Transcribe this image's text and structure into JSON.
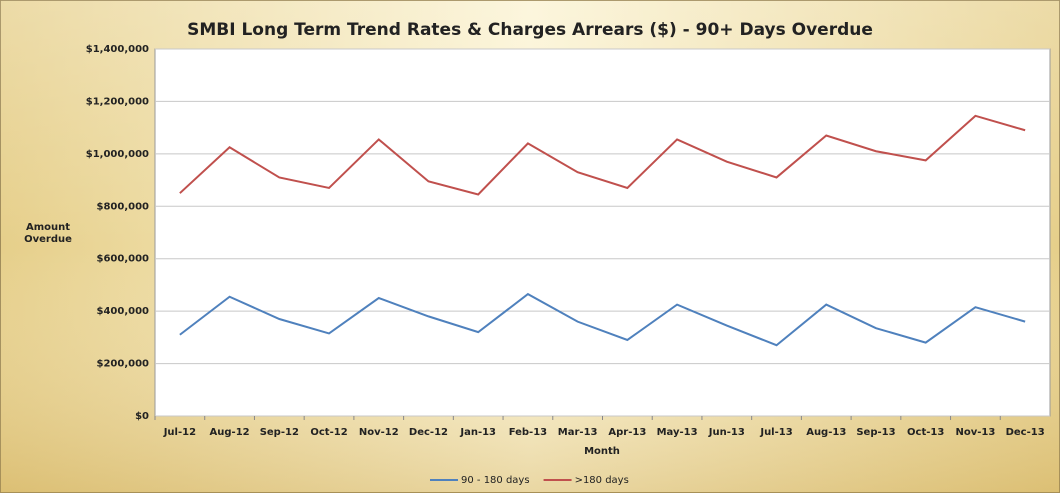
{
  "chart_data": {
    "type": "line",
    "title": "SMBI Long Term Trend Rates & Charges Arrears ($) - 90+ Days Overdue",
    "x_label": "Month",
    "y_label": "Amount Overdue",
    "categories": [
      "Jul-12",
      "Aug-12",
      "Sep-12",
      "Oct-12",
      "Nov-12",
      "Dec-12",
      "Jan-13",
      "Feb-13",
      "Mar-13",
      "Apr-13",
      "May-13",
      "Jun-13",
      "Jul-13",
      "Aug-13",
      "Sep-13",
      "Oct-13",
      "Nov-13",
      "Dec-13"
    ],
    "series": [
      {
        "name": "90 - 180 days",
        "color": "#4f81bd",
        "values": [
          310000,
          455000,
          370000,
          315000,
          450000,
          380000,
          320000,
          465000,
          360000,
          290000,
          425000,
          345000,
          270000,
          425000,
          335000,
          280000,
          415000,
          360000
        ]
      },
      {
        "name": ">180 days",
        "color": "#c0504d",
        "values": [
          850000,
          1025000,
          910000,
          870000,
          1055000,
          895000,
          845000,
          1040000,
          930000,
          870000,
          1055000,
          970000,
          910000,
          1070000,
          1010000,
          975000,
          1145000,
          1090000
        ]
      }
    ],
    "ylim": [
      0,
      1400000
    ],
    "yticks": [
      {
        "value": 0,
        "label": "$0"
      },
      {
        "value": 200000,
        "label": "$200,000"
      },
      {
        "value": 400000,
        "label": "$400,000"
      },
      {
        "value": 600000,
        "label": "$600,000"
      },
      {
        "value": 800000,
        "label": "$800,000"
      },
      {
        "value": 1000000,
        "label": "$1,000,000"
      },
      {
        "value": 1200000,
        "label": "$1,200,000"
      },
      {
        "value": 1400000,
        "label": "$1,400,000"
      }
    ],
    "grid": true,
    "legend": "bottom"
  }
}
